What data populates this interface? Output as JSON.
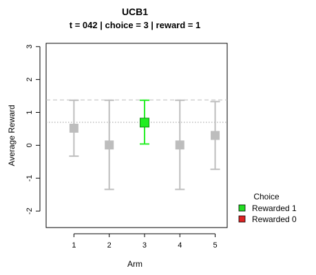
{
  "chart_data": {
    "type": "scatter",
    "title": "UCB1",
    "subtitle": "t = 042 | choice = 3 | reward = 1",
    "xlabel": "Arm",
    "ylabel": "Average Reward",
    "categories": [
      "1",
      "2",
      "3",
      "4",
      "5"
    ],
    "y_ticks": [
      -2,
      -1,
      0,
      1,
      2,
      3
    ],
    "y_tick_labels": [
      "-2",
      "-1",
      "0",
      "1",
      "2",
      "3"
    ],
    "ylim": [
      -2.5,
      3.1
    ],
    "values": [
      0.52,
      0.01,
      0.69,
      0.01,
      0.3
    ],
    "upper": [
      1.37,
      1.37,
      1.37,
      1.37,
      1.33
    ],
    "lower": [
      -0.33,
      -1.34,
      0.04,
      -1.34,
      -0.73
    ],
    "chosen_arm": 3,
    "max_ucb_reference": 1.38,
    "best_mean_reference": 0.7,
    "grid": false,
    "legend": {
      "title": "Choice",
      "placement": "right",
      "entries": [
        {
          "label": "Rewarded 1",
          "color": "#22dd22"
        },
        {
          "label": "Rewarded 0",
          "color": "#dd2222"
        }
      ]
    },
    "colors": {
      "unchosen": "#bdbdbd",
      "chosen": "#22ee22",
      "reference_lines": "#bdbdbd"
    }
  }
}
